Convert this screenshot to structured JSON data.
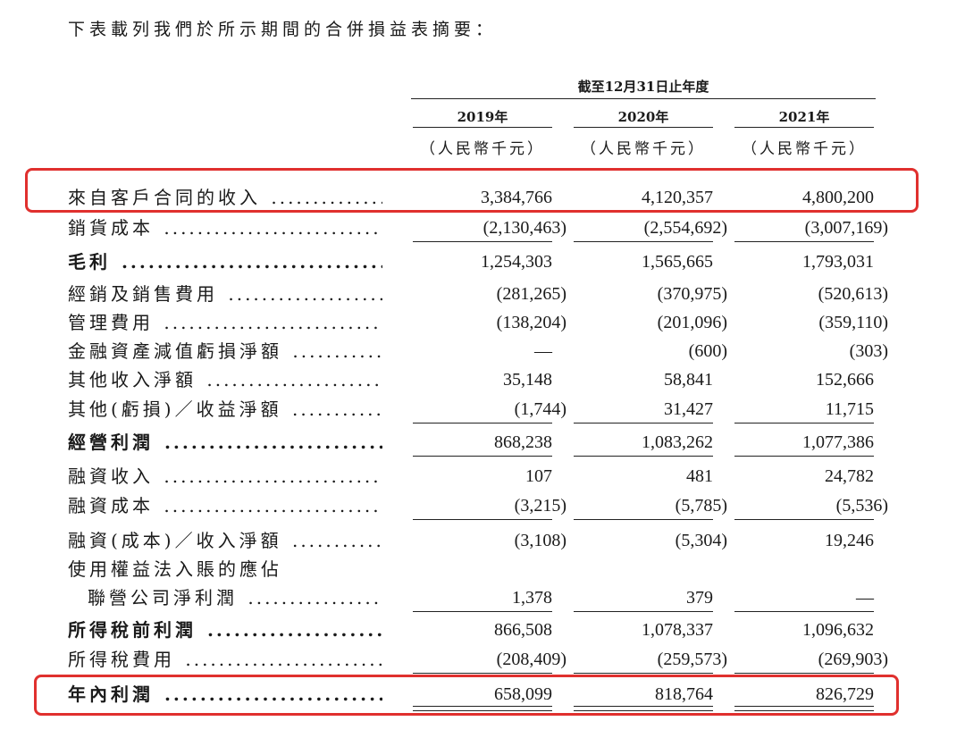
{
  "intro": "下表載列我們於所示期間的合併損益表摘要：",
  "header": {
    "period": "截至12月31日止年度",
    "years": [
      "2019年",
      "2020年",
      "2021年"
    ],
    "unit": "（人民幣千元）"
  },
  "rows": [
    {
      "label": "來自客戶合同的收入",
      "bold": false,
      "values": [
        "3,384,766",
        "4,120,357",
        "4,800,200"
      ]
    },
    {
      "label": "銷貨成本",
      "bold": false,
      "values": [
        "(2,130,463)",
        "(2,554,692)",
        "(3,007,169)"
      ]
    },
    {
      "label": "毛利",
      "bold": true,
      "values": [
        "1,254,303",
        "1,565,665",
        "1,793,031"
      ]
    },
    {
      "label": "經銷及銷售費用",
      "bold": false,
      "values": [
        "(281,265)",
        "(370,975)",
        "(520,613)"
      ]
    },
    {
      "label": "管理費用",
      "bold": false,
      "values": [
        "(138,204)",
        "(201,096)",
        "(359,110)"
      ]
    },
    {
      "label": "金融資產減值虧損淨額",
      "bold": false,
      "values": [
        "—",
        "(600)",
        "(303)"
      ]
    },
    {
      "label": "其他收入淨額",
      "bold": false,
      "values": [
        "35,148",
        "58,841",
        "152,666"
      ]
    },
    {
      "label": "其他(虧損)／收益淨額",
      "bold": false,
      "values": [
        "(1,744)",
        "31,427",
        "11,715"
      ]
    },
    {
      "label": "經營利潤",
      "bold": true,
      "values": [
        "868,238",
        "1,083,262",
        "1,077,386"
      ]
    },
    {
      "label": "融資收入",
      "bold": false,
      "values": [
        "107",
        "481",
        "24,782"
      ]
    },
    {
      "label": "融資成本",
      "bold": false,
      "values": [
        "(3,215)",
        "(5,785)",
        "(5,536)"
      ]
    },
    {
      "label": "融資(成本)／收入淨額",
      "bold": false,
      "values": [
        "(3,108)",
        "(5,304)",
        "19,246"
      ]
    },
    {
      "label": "使用權益法入賬的應佔",
      "bold": false,
      "values": [
        "",
        "",
        ""
      ]
    },
    {
      "label": "聯營公司淨利潤",
      "bold": false,
      "values": [
        "1,378",
        "379",
        "—"
      ]
    },
    {
      "label": "所得稅前利潤",
      "bold": true,
      "values": [
        "866,508",
        "1,078,337",
        "1,096,632"
      ]
    },
    {
      "label": "所得稅費用",
      "bold": false,
      "values": [
        "(208,409)",
        "(259,573)",
        "(269,903)"
      ]
    },
    {
      "label": "年內利潤",
      "bold": true,
      "values": [
        "658,099",
        "818,764",
        "826,729"
      ]
    }
  ],
  "highlight_color": "#e0302e"
}
